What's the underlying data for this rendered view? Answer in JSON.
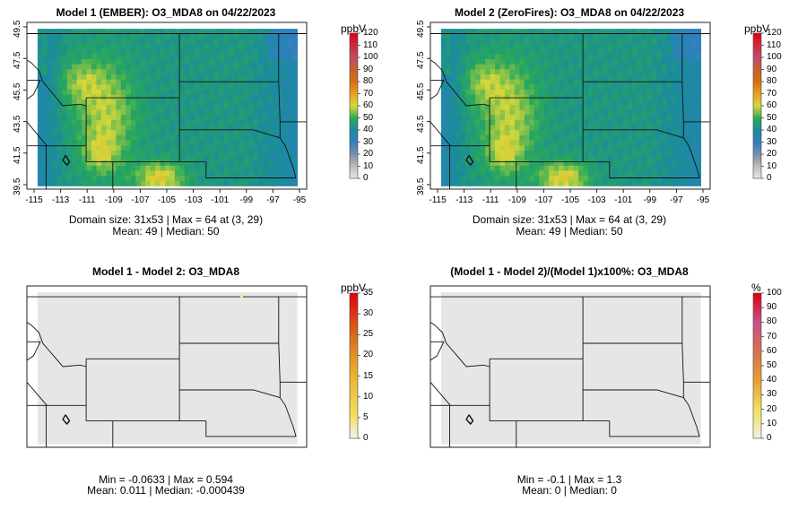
{
  "chart_data": [
    {
      "type": "heatmap",
      "title": "Model 1 (EMBER): O3_MDA8 on 04/22/2023",
      "colorbar_unit": "ppbV",
      "colorbar_ticks": [
        "0",
        "10",
        "20",
        "30",
        "40",
        "50",
        "60",
        "70",
        "80",
        "90",
        "100",
        "110",
        "120"
      ],
      "y_ticks": [
        "39.5",
        "41.5",
        "43.5",
        "45.5",
        "47.5",
        "49.5"
      ],
      "x_ticks": [
        "-115",
        "-113",
        "-111",
        "-109",
        "-107",
        "-105",
        "-103",
        "-101",
        "-99",
        "-97",
        "-95"
      ],
      "stats_line1": "Domain size: 31x53 | Max = 64 at (3, 29)",
      "stats_line2": "Mean: 49 |  Median: 50",
      "mean": 49,
      "max": 64
    },
    {
      "type": "heatmap",
      "title": "Model 2 (ZeroFires): O3_MDA8 on 04/22/2023",
      "colorbar_unit": "ppbV",
      "colorbar_ticks": [
        "0",
        "10",
        "20",
        "30",
        "40",
        "50",
        "60",
        "70",
        "80",
        "90",
        "100",
        "110",
        "120"
      ],
      "y_ticks": [
        "39.5",
        "41.5",
        "43.5",
        "45.5",
        "47.5",
        "49.5"
      ],
      "x_ticks": [
        "-115",
        "-113",
        "-111",
        "-109",
        "-107",
        "-105",
        "-103",
        "-101",
        "-99",
        "-97",
        "-95"
      ],
      "stats_line1": "Domain size: 31x53 | Max = 64 at (3, 29)",
      "stats_line2": "Mean: 49 |  Median: 50",
      "mean": 49,
      "max": 64
    },
    {
      "type": "heatmap",
      "title": "Model 1 - Model 2: O3_MDA8",
      "colorbar_unit": "ppbV",
      "colorbar_ticks": [
        "0",
        "5",
        "10",
        "15",
        "20",
        "25",
        "30",
        "35"
      ],
      "stats_line1": "Min = -0.0633 | Max = 0.594",
      "stats_line2": "Mean: 0.011 |  Median: -0.000439"
    },
    {
      "type": "heatmap",
      "title": "(Model 1 - Model 2)/(Model 1)x100%: O3_MDA8",
      "colorbar_unit": "%",
      "colorbar_ticks": [
        "0",
        "10",
        "20",
        "30",
        "40",
        "50",
        "60",
        "70",
        "80",
        "90",
        "100"
      ],
      "stats_line1": "Min = -0.1 | Max = 1.3",
      "stats_line2": "Mean: 0 |  Median: 0"
    }
  ]
}
